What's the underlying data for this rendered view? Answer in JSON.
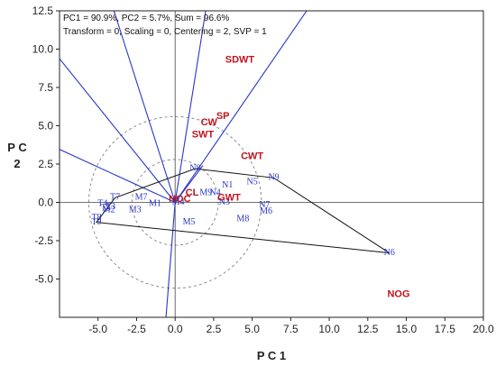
{
  "chart_data": {
    "type": "scatter",
    "title": "",
    "info_lines": [
      "PC1 = 90.9%, PC2 = 5.7%, Sum = 96.6%",
      "Transform = 0, Scaling = 0, Centering = 2, SVP = 1"
    ],
    "xlabel": "P C 1",
    "ylabel_lines": [
      "P C",
      "2"
    ],
    "xlim": [
      -7.5,
      20.0
    ],
    "ylim": [
      -7.5,
      12.5
    ],
    "x_ticks": [
      -5.0,
      -2.5,
      0.0,
      2.5,
      5.0,
      7.5,
      10.0,
      12.5,
      15.0,
      17.5,
      20.0
    ],
    "y_ticks": [
      -5.0,
      -2.5,
      0.0,
      2.5,
      5.0,
      7.5,
      10.0,
      12.5
    ],
    "x_tick_labels": [
      "-5.0",
      "-2.5",
      "0.0",
      "2.5",
      "5.0",
      "7.5",
      "10.0",
      "12.5",
      "15.0",
      "17.5",
      "20.0"
    ],
    "y_tick_labels": [
      "-5.0",
      "-2.5",
      "0.0",
      "2.5",
      "5.0",
      "7.5",
      "10.0",
      "12.5"
    ],
    "grid": false,
    "reference_lines": {
      "x": 0,
      "y": 0
    },
    "circles": {
      "center": [
        0,
        0
      ],
      "radii": [
        2.8,
        5.6
      ]
    },
    "observations": [
      {
        "label": "N6",
        "x": 13.9,
        "y": -3.3
      },
      {
        "label": "N9",
        "x": 6.4,
        "y": 1.6
      },
      {
        "label": "N8",
        "x": 1.3,
        "y": 2.2
      },
      {
        "label": "N5",
        "x": 5.0,
        "y": 1.3
      },
      {
        "label": "N1",
        "x": 3.4,
        "y": 1.1
      },
      {
        "label": "N4",
        "x": 2.6,
        "y": 0.6
      },
      {
        "label": "M9",
        "x": 2.0,
        "y": 0.6
      },
      {
        "label": "N3",
        "x": 3.2,
        "y": 0.0
      },
      {
        "label": "N7",
        "x": 5.8,
        "y": -0.2
      },
      {
        "label": "M6",
        "x": 5.9,
        "y": -0.6
      },
      {
        "label": "M8",
        "x": 4.4,
        "y": -1.1
      },
      {
        "label": "M5",
        "x": 0.9,
        "y": -1.3
      },
      {
        "label": "M7",
        "x": -2.2,
        "y": 0.3
      },
      {
        "label": "M1",
        "x": -1.3,
        "y": -0.1
      },
      {
        "label": "M3",
        "x": -2.6,
        "y": -0.5
      },
      {
        "label": "M2",
        "x": -4.3,
        "y": -0.5
      },
      {
        "label": "T7",
        "x": -3.9,
        "y": 0.3
      },
      {
        "label": "T4",
        "x": -4.7,
        "y": -0.1
      },
      {
        "label": "T5",
        "x": -4.5,
        "y": -0.4
      },
      {
        "label": "T3",
        "x": -4.2,
        "y": -0.3
      },
      {
        "label": "T8",
        "x": -5.1,
        "y": -1.0
      },
      {
        "label": "T9",
        "x": -5.1,
        "y": -1.3
      },
      {
        "label": "M4",
        "x": 0.2,
        "y": 0.0
      }
    ],
    "hull": [
      "N6",
      "N9",
      "N8",
      "T7",
      "T9"
    ],
    "variables": [
      {
        "label": "SDWT",
        "x": 4.2,
        "y": 9.3
      },
      {
        "label": "SP",
        "x": 3.1,
        "y": 5.6
      },
      {
        "label": "CW",
        "x": 2.2,
        "y": 5.2
      },
      {
        "label": "SWT",
        "x": 1.8,
        "y": 4.4
      },
      {
        "label": "CWT",
        "x": 5.0,
        "y": 3.0
      },
      {
        "label": "CL",
        "x": 1.1,
        "y": 0.6
      },
      {
        "label": "NOC",
        "x": 0.3,
        "y": 0.2
      },
      {
        "label": "GWT",
        "x": 3.5,
        "y": 0.3
      },
      {
        "label": "NOG",
        "x": 14.5,
        "y": -6.0
      }
    ],
    "vectors": [
      {
        "x": -7.6,
        "y": 9.5
      },
      {
        "x": -4.0,
        "y": 12.6
      },
      {
        "x": -7.6,
        "y": 3.5
      },
      {
        "x": 2.0,
        "y": 12.6
      },
      {
        "x": 8.6,
        "y": 12.6
      },
      {
        "x": 1.8,
        "y": 2.4
      },
      {
        "x": -0.6,
        "y": -7.6
      }
    ],
    "colors": {
      "observation": "#2a36c8",
      "variable": "#c0141e",
      "vector": "#2a36c8",
      "hull": "#111111",
      "circle": "#8c8c8c",
      "reference": "#444444"
    }
  }
}
